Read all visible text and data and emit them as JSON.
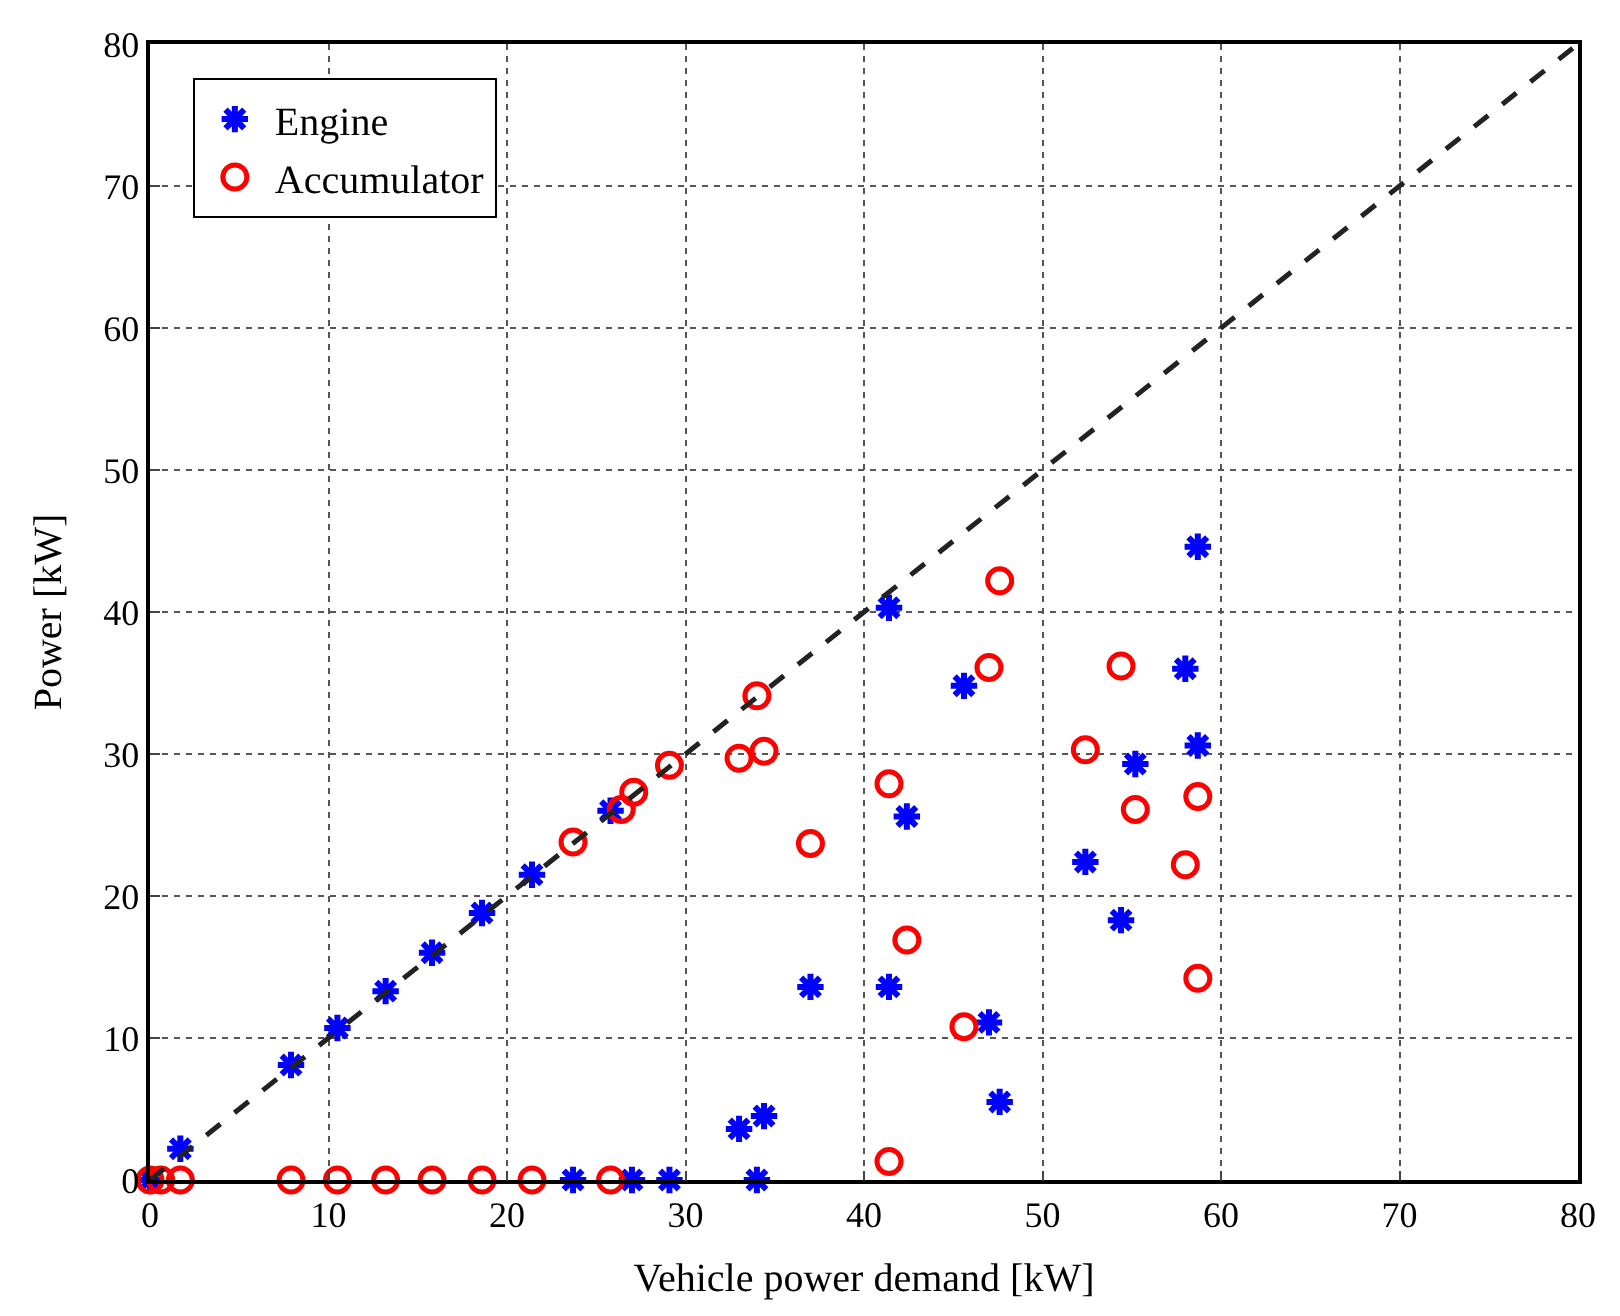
{
  "chart_data": {
    "type": "scatter",
    "xlabel": "Vehicle power demand [kW]",
    "ylabel": "Power [kW]",
    "xlim": [
      0,
      80
    ],
    "ylim": [
      0,
      80
    ],
    "xticks": [
      0,
      10,
      20,
      30,
      40,
      50,
      60,
      70,
      80
    ],
    "yticks": [
      0,
      10,
      20,
      30,
      40,
      50,
      60,
      70,
      80
    ],
    "grid": true,
    "legend": "top left",
    "series": [
      {
        "name": "Engine",
        "color": "#0000ff",
        "marker": "cross",
        "x": [
          0,
          0.3,
          1.7,
          7.9,
          10.5,
          13.2,
          15.8,
          18.6,
          21.4,
          25.8,
          23.7,
          27.0,
          29.1,
          33.0,
          34.4,
          34.0,
          37.0,
          41.4,
          41.4,
          45.6,
          42.4,
          47.0,
          47.6,
          52.4,
          54.4,
          55.2,
          58.7,
          58.0,
          58.7
        ],
        "values": [
          0,
          null,
          2.2,
          8.1,
          10.7,
          13.3,
          16.0,
          18.8,
          21.5,
          26.0,
          0,
          0,
          0,
          3.6,
          4.5,
          0,
          13.6,
          13.6,
          40.3,
          34.8,
          25.6,
          11.1,
          5.5,
          22.4,
          18.3,
          29.3,
          30.6,
          36.0,
          44.6
        ]
      },
      {
        "name": "Accumulator",
        "color": "#ff0000",
        "marker": "circle",
        "x": [
          0,
          0.6,
          1.7,
          7.9,
          10.5,
          13.2,
          15.8,
          18.6,
          21.4,
          25.8,
          23.7,
          26.4,
          27.1,
          29.1,
          33.0,
          34.4,
          34.0,
          37.0,
          41.4,
          41.4,
          42.4,
          45.6,
          47.0,
          47.6,
          52.4,
          54.4,
          55.2,
          58.0,
          58.7,
          58.7
        ],
        "values": [
          0,
          0,
          0,
          0,
          0,
          0,
          0,
          0,
          0,
          0,
          23.8,
          26.1,
          27.3,
          29.2,
          29.7,
          30.2,
          34.1,
          23.7,
          27.9,
          1.3,
          16.9,
          10.8,
          36.1,
          42.2,
          30.3,
          36.2,
          26.1,
          22.2,
          27.0,
          14.2
        ]
      },
      {
        "type": "line",
        "color": "#222222",
        "line_style": "dashed",
        "marker": "none",
        "x": [
          0,
          80
        ],
        "values": [
          0,
          80
        ]
      }
    ]
  }
}
